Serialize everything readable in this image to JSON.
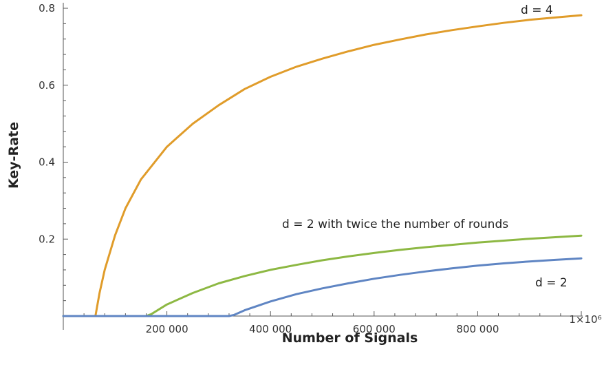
{
  "chart_data": {
    "type": "line",
    "title": "",
    "xlabel": "Number of Signals",
    "ylabel": "Key-Rate",
    "xlim": [
      0,
      1000000
    ],
    "ylim": [
      0,
      0.8
    ],
    "x_ticks": [
      {
        "value": 200000,
        "label": "200 000"
      },
      {
        "value": 400000,
        "label": "400 000"
      },
      {
        "value": 600000,
        "label": "600 000"
      },
      {
        "value": 800000,
        "label": "800 000"
      },
      {
        "value": 1000000,
        "label": "1×10⁶"
      }
    ],
    "y_ticks": [
      {
        "value": 0.2,
        "label": "0.2"
      },
      {
        "value": 0.4,
        "label": "0.4"
      },
      {
        "value": 0.6,
        "label": "0.6"
      },
      {
        "value": 0.8,
        "label": "0.8"
      }
    ],
    "series": [
      {
        "name": "d = 4",
        "color": "#e09c2a",
        "x": [
          0,
          60000,
          62000,
          70000,
          80000,
          100000,
          120000,
          150000,
          200000,
          250000,
          300000,
          350000,
          400000,
          450000,
          500000,
          550000,
          600000,
          650000,
          700000,
          750000,
          800000,
          850000,
          900000,
          950000,
          1000000
        ],
        "y": [
          0,
          0,
          0,
          0.06,
          0.12,
          0.21,
          0.28,
          0.355,
          0.44,
          0.5,
          0.548,
          0.59,
          0.622,
          0.648,
          0.669,
          0.688,
          0.705,
          0.719,
          0.732,
          0.743,
          0.753,
          0.762,
          0.77,
          0.776,
          0.782
        ]
      },
      {
        "name": "d = 2 with twice the number of rounds",
        "color": "#8db843",
        "x": [
          0,
          160000,
          170000,
          200000,
          250000,
          300000,
          350000,
          400000,
          450000,
          500000,
          550000,
          600000,
          650000,
          700000,
          750000,
          800000,
          850000,
          900000,
          950000,
          1000000
        ],
        "y": [
          0,
          0,
          0.005,
          0.03,
          0.06,
          0.085,
          0.104,
          0.12,
          0.133,
          0.145,
          0.155,
          0.164,
          0.172,
          0.179,
          0.185,
          0.191,
          0.196,
          0.201,
          0.205,
          0.209
        ]
      },
      {
        "name": "d = 2",
        "color": "#5f85c3",
        "x": [
          0,
          320000,
          330000,
          350000,
          400000,
          450000,
          500000,
          550000,
          600000,
          650000,
          700000,
          750000,
          800000,
          850000,
          900000,
          950000,
          1000000
        ],
        "y": [
          0,
          0,
          0.003,
          0.015,
          0.038,
          0.057,
          0.072,
          0.085,
          0.097,
          0.107,
          0.116,
          0.124,
          0.131,
          0.137,
          0.142,
          0.146,
          0.15
        ]
      }
    ],
    "annotations": [
      {
        "text": "d = 4",
        "series": 0
      },
      {
        "text": "d = 2 with twice the number of rounds",
        "series": 1
      },
      {
        "text": "d = 2",
        "series": 2
      }
    ],
    "grid": false,
    "legend": "none"
  }
}
